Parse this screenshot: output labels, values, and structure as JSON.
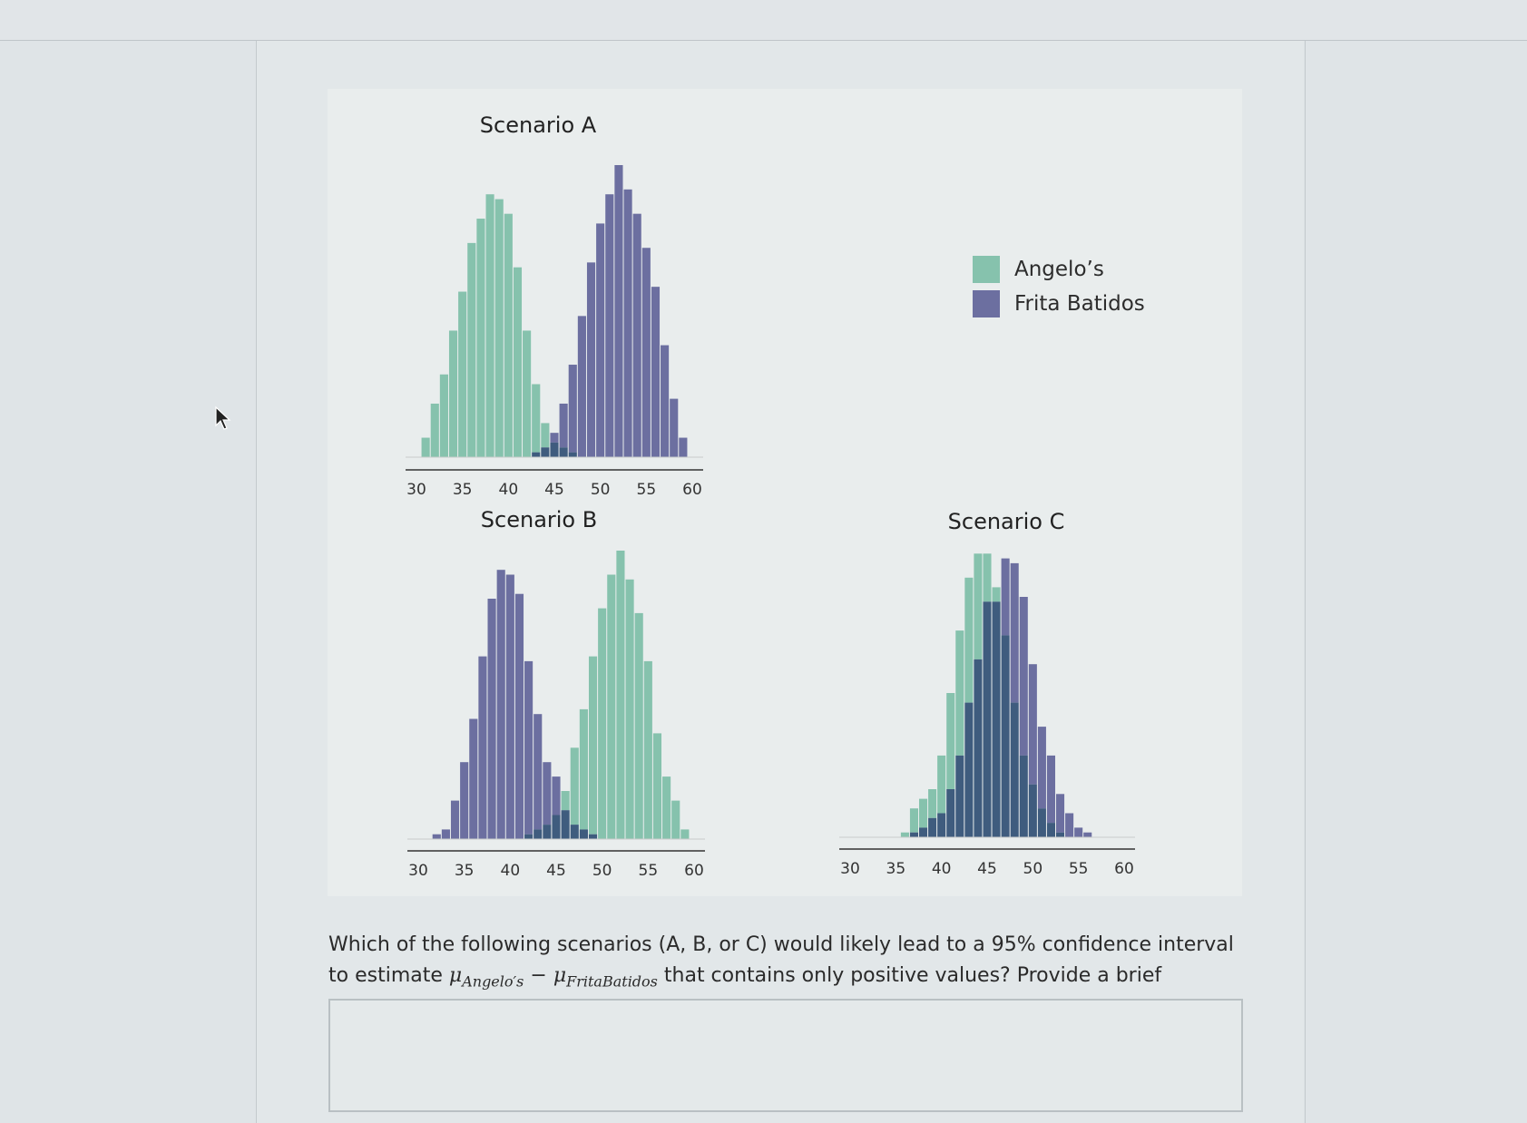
{
  "legend": {
    "items": [
      {
        "label": "Angelo’s",
        "color": "#86c2ad"
      },
      {
        "label": "Frita Batidos",
        "color": "#6c6fa0"
      }
    ]
  },
  "colors": {
    "overlap": "#3f5c7e"
  },
  "question": {
    "text_before": "Which of the following scenarios (A, B, or C) would likely lead to a 95% confidence interval to estimate",
    "mu": "μ",
    "sub1": "Angelo′s",
    "minus": "−",
    "sub2": "FritaBatidos",
    "text_after": "that contains only positive values? Provide a brief explanation."
  },
  "answer_box": {
    "value": ""
  },
  "chart_data": [
    {
      "type": "bar",
      "title": "Scenario A",
      "xlim": [
        30,
        60
      ],
      "xticks": [
        30,
        35,
        40,
        45,
        50,
        55,
        60
      ],
      "ylim": [
        0,
        60
      ],
      "bin_width": 1,
      "x": [
        31,
        32,
        33,
        34,
        35,
        36,
        37,
        38,
        39,
        40,
        41,
        42,
        43,
        44,
        45,
        46,
        47,
        48,
        49,
        50,
        51,
        52,
        53,
        54,
        55,
        56,
        57,
        58,
        59
      ],
      "series": [
        {
          "name": "Angelo’s",
          "values": [
            4,
            11,
            17,
            26,
            34,
            44,
            49,
            54,
            53,
            50,
            39,
            26,
            15,
            7,
            3,
            2,
            1,
            0,
            0,
            0,
            0,
            0,
            0,
            0,
            0,
            0,
            0,
            0,
            0
          ]
        },
        {
          "name": "Frita Batidos",
          "values": [
            0,
            0,
            0,
            0,
            0,
            0,
            0,
            0,
            0,
            0,
            0,
            0,
            1,
            2,
            5,
            11,
            19,
            29,
            40,
            48,
            54,
            60,
            55,
            50,
            43,
            35,
            23,
            12,
            4
          ]
        }
      ]
    },
    {
      "type": "bar",
      "title": "Scenario B",
      "xlim": [
        30,
        60
      ],
      "xticks": [
        30,
        35,
        40,
        45,
        50,
        55,
        60
      ],
      "ylim": [
        0,
        60
      ],
      "bin_width": 1,
      "x": [
        31,
        32,
        33,
        34,
        35,
        36,
        37,
        38,
        39,
        40,
        41,
        42,
        43,
        44,
        45,
        46,
        47,
        48,
        49,
        50,
        51,
        52,
        53,
        54,
        55,
        56,
        57,
        58,
        59
      ],
      "series": [
        {
          "name": "Angelo’s",
          "values": [
            0,
            0,
            0,
            0,
            0,
            0,
            0,
            0,
            0,
            0,
            0,
            1,
            2,
            3,
            5,
            10,
            19,
            27,
            38,
            48,
            55,
            60,
            54,
            47,
            37,
            22,
            13,
            8,
            2
          ]
        },
        {
          "name": "Frita Batidos",
          "values": [
            0,
            1,
            2,
            8,
            16,
            25,
            38,
            50,
            56,
            55,
            51,
            37,
            26,
            16,
            13,
            6,
            3,
            2,
            1,
            0,
            0,
            0,
            0,
            0,
            0,
            0,
            0,
            0,
            0
          ]
        }
      ]
    },
    {
      "type": "bar",
      "title": "Scenario C",
      "xlim": [
        30,
        60
      ],
      "xticks": [
        30,
        35,
        40,
        45,
        50,
        55,
        60
      ],
      "ylim": [
        0,
        60
      ],
      "bin_width": 1,
      "x": [
        31,
        32,
        33,
        34,
        35,
        36,
        37,
        38,
        39,
        40,
        41,
        42,
        43,
        44,
        45,
        46,
        47,
        48,
        49,
        50,
        51,
        52,
        53,
        54,
        55,
        56,
        57,
        58,
        59
      ],
      "series": [
        {
          "name": "Angelo’s",
          "values": [
            0,
            0,
            0,
            0,
            0,
            1,
            6,
            8,
            10,
            17,
            30,
            43,
            54,
            59,
            59,
            52,
            42,
            28,
            17,
            11,
            6,
            3,
            1,
            0,
            0,
            0,
            0,
            0,
            0
          ]
        },
        {
          "name": "Frita Batidos",
          "values": [
            0,
            0,
            0,
            0,
            0,
            0,
            1,
            2,
            4,
            5,
            10,
            17,
            28,
            37,
            49,
            49,
            58,
            57,
            50,
            36,
            23,
            17,
            9,
            5,
            2,
            1,
            0,
            0,
            0
          ]
        }
      ]
    }
  ]
}
